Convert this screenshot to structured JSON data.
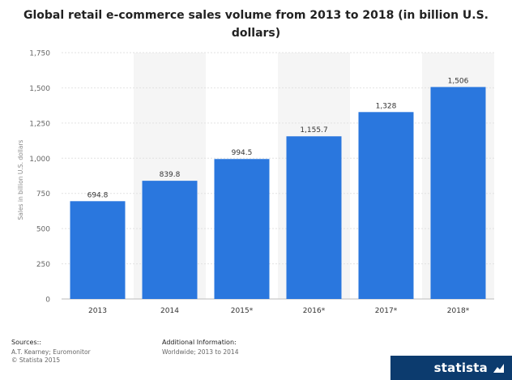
{
  "chart_data": {
    "type": "bar",
    "title_line1": "Global retail e-commerce sales volume from 2013 to 2018 (in billion U.S.",
    "title_line2": "dollars)",
    "xlabel": "",
    "ylabel": "Sales in billion U.S. dollars",
    "categories": [
      "2013",
      "2014",
      "2015*",
      "2016*",
      "2017*",
      "2018*"
    ],
    "values": [
      694.8,
      839.8,
      994.5,
      1155.7,
      1328,
      1506
    ],
    "value_labels": [
      "694.8",
      "839.8",
      "994.5",
      "1,155.7",
      "1,328",
      "1,506"
    ],
    "ylim": [
      0,
      1750
    ],
    "yticks": [
      0,
      250,
      500,
      750,
      1000,
      1250,
      1500,
      1750
    ],
    "ytick_labels": [
      "0",
      "250",
      "500",
      "750",
      "1,000",
      "1,250",
      "1,500",
      "1,750"
    ],
    "bar_color": "#2a77de",
    "grid": true,
    "legend": "none"
  },
  "footer": {
    "sources_label": "Sources::",
    "sources_text": "A.T. Kearney; Euromonitor",
    "copyright": "© Statista 2015",
    "additional_label": "Additional Information:",
    "additional_text": "Worldwide; 2013 to 2014"
  },
  "brand": {
    "name": "statista",
    "color": "#0c3b6e"
  }
}
